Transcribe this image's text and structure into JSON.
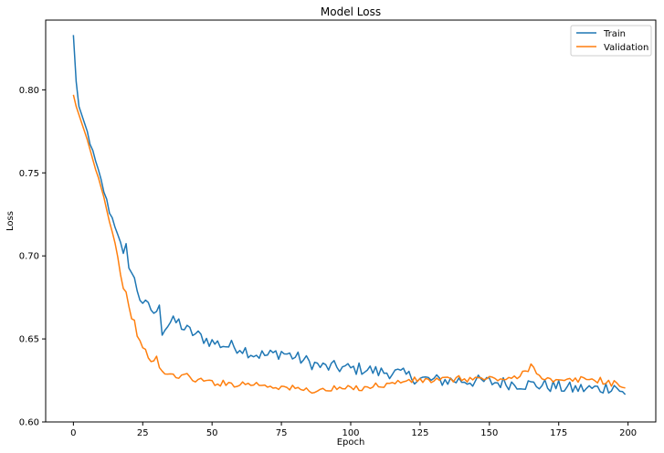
{
  "chart_data": {
    "type": "line",
    "title": "Model Loss",
    "xlabel": "Epoch",
    "ylabel": "Loss",
    "xlim": [
      -10,
      210
    ],
    "ylim": [
      0.6,
      0.842
    ],
    "xticks": [
      0,
      25,
      50,
      75,
      100,
      125,
      150,
      175,
      200
    ],
    "yticks": [
      0.6,
      0.65,
      0.7,
      0.75,
      0.8
    ],
    "ytick_labels": [
      "0.60",
      "0.65",
      "0.70",
      "0.75",
      "0.80"
    ],
    "grid": false,
    "legend_position": "top-right",
    "series": [
      {
        "name": "Train",
        "color": "#1f77b4",
        "anchors": [
          [
            0,
            0.833
          ],
          [
            1,
            0.805
          ],
          [
            2,
            0.79
          ],
          [
            3,
            0.785
          ],
          [
            5,
            0.775
          ],
          [
            7,
            0.762
          ],
          [
            10,
            0.745
          ],
          [
            13,
            0.727
          ],
          [
            16,
            0.714
          ],
          [
            18,
            0.7
          ],
          [
            19,
            0.706
          ],
          [
            20,
            0.695
          ],
          [
            22,
            0.685
          ],
          [
            24,
            0.675
          ],
          [
            26,
            0.67
          ],
          [
            28,
            0.668
          ],
          [
            30,
            0.664
          ],
          [
            31,
            0.673
          ],
          [
            32,
            0.655
          ],
          [
            35,
            0.66
          ],
          [
            38,
            0.66
          ],
          [
            40,
            0.656
          ],
          [
            45,
            0.652
          ],
          [
            50,
            0.648
          ],
          [
            55,
            0.646
          ],
          [
            60,
            0.645
          ],
          [
            65,
            0.641
          ],
          [
            70,
            0.64
          ],
          [
            75,
            0.642
          ],
          [
            80,
            0.639
          ],
          [
            85,
            0.636
          ],
          [
            90,
            0.633
          ],
          [
            95,
            0.633
          ],
          [
            100,
            0.632
          ],
          [
            105,
            0.632
          ],
          [
            110,
            0.63
          ],
          [
            115,
            0.63
          ],
          [
            120,
            0.628
          ],
          [
            125,
            0.626
          ],
          [
            130,
            0.625
          ],
          [
            140,
            0.625
          ],
          [
            150,
            0.624
          ],
          [
            160,
            0.623
          ],
          [
            170,
            0.622
          ],
          [
            175,
            0.621
          ],
          [
            180,
            0.62
          ],
          [
            185,
            0.62
          ],
          [
            190,
            0.62
          ],
          [
            195,
            0.622
          ],
          [
            199,
            0.616
          ]
        ],
        "noise": [
          0.0,
          0.0,
          0.0,
          0.0,
          0.002,
          0.002,
          0.002,
          0.002,
          0.002,
          0.002,
          0.003,
          0.004,
          0.004,
          0.004,
          0.004,
          0.004,
          0.004,
          0.004,
          0.004,
          0.004,
          0.004,
          0.004,
          0.004,
          0.004,
          0.004,
          0.004,
          0.004,
          0.004,
          0.004,
          0.004,
          0.004,
          0.004,
          0.004,
          0.004,
          0.004,
          0.004,
          0.004,
          0.004,
          0.004,
          0.004,
          0.004,
          0.004,
          0.004,
          0.004,
          0.004,
          0.004,
          0.004,
          0.004,
          0.002,
          0.0
        ]
      },
      {
        "name": "Validation",
        "color": "#ff7f0e",
        "anchors": [
          [
            0,
            0.797
          ],
          [
            1,
            0.79
          ],
          [
            3,
            0.78
          ],
          [
            5,
            0.77
          ],
          [
            7,
            0.758
          ],
          [
            10,
            0.742
          ],
          [
            12,
            0.728
          ],
          [
            14,
            0.715
          ],
          [
            16,
            0.7
          ],
          [
            18,
            0.68
          ],
          [
            19,
            0.679
          ],
          [
            20,
            0.668
          ],
          [
            22,
            0.66
          ],
          [
            24,
            0.647
          ],
          [
            25,
            0.643
          ],
          [
            26,
            0.645
          ],
          [
            28,
            0.635
          ],
          [
            30,
            0.638
          ],
          [
            32,
            0.63
          ],
          [
            35,
            0.628
          ],
          [
            40,
            0.628
          ],
          [
            45,
            0.625
          ],
          [
            50,
            0.624
          ],
          [
            55,
            0.623
          ],
          [
            60,
            0.623
          ],
          [
            65,
            0.623
          ],
          [
            70,
            0.622
          ],
          [
            75,
            0.621
          ],
          [
            80,
            0.62
          ],
          [
            85,
            0.619
          ],
          [
            90,
            0.619
          ],
          [
            95,
            0.62
          ],
          [
            100,
            0.62
          ],
          [
            105,
            0.621
          ],
          [
            110,
            0.622
          ],
          [
            115,
            0.623
          ],
          [
            120,
            0.625
          ],
          [
            125,
            0.625
          ],
          [
            130,
            0.625
          ],
          [
            140,
            0.626
          ],
          [
            150,
            0.626
          ],
          [
            160,
            0.626
          ],
          [
            165,
            0.634
          ],
          [
            170,
            0.626
          ],
          [
            175,
            0.624
          ],
          [
            180,
            0.625
          ],
          [
            185,
            0.626
          ],
          [
            190,
            0.625
          ],
          [
            195,
            0.623
          ],
          [
            199,
            0.621
          ]
        ],
        "noise": [
          0.0,
          0.0,
          0.0,
          0.0,
          0.001,
          0.001,
          0.001,
          0.001,
          0.002,
          0.002,
          0.002,
          0.002,
          0.002,
          0.002,
          0.002,
          0.002,
          0.002,
          0.002,
          0.002,
          0.002,
          0.002,
          0.002,
          0.002,
          0.002,
          0.002,
          0.002,
          0.002,
          0.002,
          0.002,
          0.002,
          0.002,
          0.002,
          0.002,
          0.002,
          0.002,
          0.002,
          0.002,
          0.002,
          0.002,
          0.002,
          0.002,
          0.002,
          0.002,
          0.002,
          0.002,
          0.002,
          0.002,
          0.002,
          0.001,
          0.0
        ]
      }
    ]
  }
}
